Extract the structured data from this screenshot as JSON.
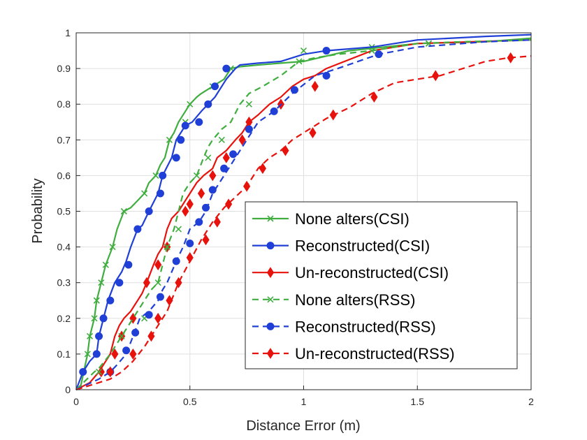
{
  "chart_data": {
    "type": "line",
    "title": "",
    "xlabel": "Distance Error (m)",
    "ylabel": "Probability",
    "xlim": [
      0,
      2
    ],
    "ylim": [
      0,
      1
    ],
    "xticks": [
      0,
      0.5,
      1,
      1.5,
      2
    ],
    "xtick_labels": [
      "0",
      "0.5",
      "1",
      "1.5",
      "2"
    ],
    "yticks": [
      0,
      0.1,
      0.2,
      0.3,
      0.4,
      0.5,
      0.6,
      0.7,
      0.8,
      0.9,
      1
    ],
    "ytick_labels": [
      "0",
      "0.1",
      "0.2",
      "0.3",
      "0.4",
      "0.5",
      "0.6",
      "0.7",
      "0.8",
      "0.9",
      "1"
    ],
    "grid": true,
    "legend_position": "lower-right",
    "series": [
      {
        "name": "None alters(CSI)",
        "color": "#3fae3f",
        "style": "solid",
        "marker": "x",
        "x": [
          0.02,
          0.05,
          0.06,
          0.08,
          0.09,
          0.11,
          0.13,
          0.16,
          0.18,
          0.21,
          0.24,
          0.27,
          0.3,
          0.32,
          0.35,
          0.37,
          0.39,
          0.41,
          0.43,
          0.45,
          0.48,
          0.5,
          0.53,
          0.55,
          0.6,
          0.65,
          0.68,
          0.72,
          0.8,
          0.9,
          1.0,
          1.2,
          1.5,
          1.8,
          2.0
        ],
        "y": [
          0.01,
          0.1,
          0.15,
          0.2,
          0.25,
          0.3,
          0.35,
          0.4,
          0.45,
          0.5,
          0.51,
          0.53,
          0.55,
          0.58,
          0.6,
          0.63,
          0.65,
          0.7,
          0.72,
          0.75,
          0.78,
          0.8,
          0.82,
          0.83,
          0.85,
          0.87,
          0.9,
          0.905,
          0.91,
          0.915,
          0.92,
          0.95,
          0.97,
          0.975,
          0.985
        ],
        "markers_x": [
          0.05,
          0.06,
          0.08,
          0.09,
          0.11,
          0.13,
          0.16,
          0.21,
          0.3,
          0.35,
          0.41,
          0.48,
          0.5,
          0.6,
          0.68,
          1.0,
          1.3,
          1.55
        ],
        "markers_y": [
          0.1,
          0.15,
          0.2,
          0.25,
          0.3,
          0.35,
          0.4,
          0.5,
          0.55,
          0.6,
          0.7,
          0.75,
          0.8,
          0.85,
          0.9,
          0.95,
          0.96,
          0.97
        ]
      },
      {
        "name": "Reconstructed(CSI)",
        "color": "#1f3fd6",
        "style": "solid",
        "marker": "o",
        "x": [
          0.0,
          0.03,
          0.06,
          0.09,
          0.1,
          0.12,
          0.14,
          0.17,
          0.2,
          0.22,
          0.24,
          0.27,
          0.29,
          0.32,
          0.36,
          0.38,
          0.42,
          0.44,
          0.46,
          0.48,
          0.51,
          0.55,
          0.58,
          0.61,
          0.64,
          0.66,
          0.7,
          0.72,
          0.8,
          0.9,
          1.0,
          1.1,
          1.3,
          1.5,
          1.8,
          2.0
        ],
        "y": [
          0.0,
          0.05,
          0.08,
          0.1,
          0.15,
          0.2,
          0.25,
          0.3,
          0.33,
          0.36,
          0.4,
          0.45,
          0.46,
          0.5,
          0.55,
          0.6,
          0.65,
          0.7,
          0.72,
          0.74,
          0.75,
          0.78,
          0.8,
          0.82,
          0.85,
          0.87,
          0.9,
          0.91,
          0.915,
          0.92,
          0.94,
          0.95,
          0.96,
          0.98,
          0.99,
          0.995
        ],
        "markers_x": [
          0.03,
          0.09,
          0.1,
          0.12,
          0.15,
          0.19,
          0.23,
          0.27,
          0.32,
          0.37,
          0.38,
          0.44,
          0.46,
          0.48,
          0.54,
          0.58,
          0.61,
          0.66,
          1.1
        ],
        "markers_y": [
          0.05,
          0.1,
          0.15,
          0.2,
          0.25,
          0.3,
          0.35,
          0.45,
          0.5,
          0.55,
          0.6,
          0.65,
          0.7,
          0.74,
          0.75,
          0.8,
          0.85,
          0.9,
          0.95
        ]
      },
      {
        "name": "Un-reconstructed(CSI)",
        "color": "#e8120d",
        "style": "solid",
        "marker": "d",
        "x": [
          0.0,
          0.06,
          0.1,
          0.12,
          0.15,
          0.17,
          0.19,
          0.21,
          0.24,
          0.27,
          0.29,
          0.31,
          0.34,
          0.36,
          0.38,
          0.4,
          0.42,
          0.45,
          0.48,
          0.5,
          0.53,
          0.56,
          0.6,
          0.62,
          0.66,
          0.7,
          0.73,
          0.76,
          0.8,
          0.85,
          0.9,
          0.95,
          1.0,
          1.05,
          1.1,
          1.3,
          1.5,
          2.0
        ],
        "y": [
          0.0,
          0.02,
          0.05,
          0.07,
          0.1,
          0.15,
          0.18,
          0.2,
          0.22,
          0.25,
          0.27,
          0.3,
          0.35,
          0.38,
          0.4,
          0.45,
          0.48,
          0.5,
          0.53,
          0.55,
          0.58,
          0.6,
          0.62,
          0.65,
          0.67,
          0.7,
          0.72,
          0.75,
          0.77,
          0.8,
          0.82,
          0.85,
          0.87,
          0.88,
          0.9,
          0.95,
          0.97,
          0.98
        ],
        "markers_x": [
          0.11,
          0.17,
          0.2,
          0.25,
          0.31,
          0.36,
          0.4,
          0.48,
          0.5,
          0.55,
          0.6,
          0.66,
          0.73,
          0.76,
          0.9,
          1.05
        ],
        "markers_y": [
          0.05,
          0.1,
          0.15,
          0.2,
          0.3,
          0.35,
          0.4,
          0.5,
          0.52,
          0.55,
          0.6,
          0.65,
          0.7,
          0.75,
          0.8,
          0.85
        ]
      },
      {
        "name": "None alters(RSS)",
        "color": "#3fae3f",
        "style": "dashed",
        "marker": "x",
        "x": [
          0.0,
          0.08,
          0.1,
          0.15,
          0.2,
          0.25,
          0.3,
          0.33,
          0.36,
          0.38,
          0.4,
          0.43,
          0.45,
          0.47,
          0.5,
          0.53,
          0.56,
          0.58,
          0.6,
          0.64,
          0.68,
          0.72,
          0.76,
          0.82,
          0.9,
          0.98,
          1.05,
          1.15,
          1.3,
          1.5,
          1.7,
          2.0
        ],
        "y": [
          0.0,
          0.05,
          0.06,
          0.1,
          0.15,
          0.2,
          0.25,
          0.28,
          0.3,
          0.35,
          0.4,
          0.45,
          0.5,
          0.55,
          0.58,
          0.6,
          0.65,
          0.68,
          0.7,
          0.73,
          0.75,
          0.8,
          0.83,
          0.85,
          0.88,
          0.92,
          0.93,
          0.94,
          0.95,
          0.97,
          0.975,
          0.98
        ],
        "markers_x": [
          0.1,
          0.2,
          0.3,
          0.36,
          0.4,
          0.45,
          0.53,
          0.58,
          0.64,
          0.76,
          0.98,
          1.3,
          1.55
        ],
        "markers_y": [
          0.05,
          0.15,
          0.2,
          0.3,
          0.4,
          0.45,
          0.6,
          0.65,
          0.7,
          0.8,
          0.92,
          0.95,
          0.97
        ]
      },
      {
        "name": "Reconstructed(RSS)",
        "color": "#1f3fd6",
        "style": "dashed",
        "marker": "o",
        "x": [
          0.0,
          0.1,
          0.15,
          0.18,
          0.22,
          0.25,
          0.28,
          0.32,
          0.36,
          0.38,
          0.4,
          0.44,
          0.47,
          0.5,
          0.54,
          0.57,
          0.6,
          0.65,
          0.7,
          0.75,
          0.8,
          0.87,
          0.95,
          1.05,
          1.15,
          1.33,
          1.5,
          1.8,
          2.0
        ],
        "y": [
          0.0,
          0.03,
          0.05,
          0.07,
          0.1,
          0.15,
          0.2,
          0.22,
          0.25,
          0.28,
          0.3,
          0.36,
          0.4,
          0.45,
          0.47,
          0.5,
          0.55,
          0.6,
          0.65,
          0.7,
          0.75,
          0.78,
          0.83,
          0.88,
          0.9,
          0.94,
          0.96,
          0.975,
          0.98
        ],
        "markers_x": [
          0.15,
          0.22,
          0.26,
          0.32,
          0.37,
          0.44,
          0.5,
          0.54,
          0.57,
          0.6,
          0.65,
          0.69,
          0.76,
          0.87,
          0.96,
          1.1,
          1.33
        ],
        "markers_y": [
          0.05,
          0.11,
          0.16,
          0.21,
          0.26,
          0.36,
          0.41,
          0.47,
          0.51,
          0.56,
          0.62,
          0.66,
          0.73,
          0.78,
          0.84,
          0.88,
          0.94
        ]
      },
      {
        "name": "Un-reconstructed(RSS)",
        "color": "#e8120d",
        "style": "dashed",
        "marker": "d",
        "x": [
          0.0,
          0.1,
          0.15,
          0.2,
          0.25,
          0.3,
          0.35,
          0.4,
          0.45,
          0.5,
          0.55,
          0.6,
          0.65,
          0.7,
          0.75,
          0.8,
          0.85,
          0.9,
          0.95,
          1.0,
          1.05,
          1.1,
          1.2,
          1.3,
          1.4,
          1.5,
          1.6,
          1.7,
          1.8,
          1.9,
          2.0
        ],
        "y": [
          0.0,
          0.02,
          0.03,
          0.05,
          0.08,
          0.12,
          0.17,
          0.22,
          0.3,
          0.36,
          0.42,
          0.47,
          0.51,
          0.54,
          0.57,
          0.62,
          0.65,
          0.67,
          0.7,
          0.72,
          0.74,
          0.76,
          0.79,
          0.83,
          0.86,
          0.87,
          0.88,
          0.9,
          0.92,
          0.93,
          0.935
        ],
        "markers_x": [
          0.15,
          0.25,
          0.33,
          0.36,
          0.41,
          0.45,
          0.5,
          0.57,
          0.62,
          0.67,
          0.75,
          0.82,
          0.92,
          1.04,
          1.13,
          1.31,
          1.58,
          1.91
        ],
        "markers_y": [
          0.05,
          0.1,
          0.15,
          0.2,
          0.25,
          0.3,
          0.37,
          0.42,
          0.47,
          0.52,
          0.57,
          0.62,
          0.67,
          0.72,
          0.77,
          0.82,
          0.88,
          0.93
        ]
      }
    ]
  }
}
